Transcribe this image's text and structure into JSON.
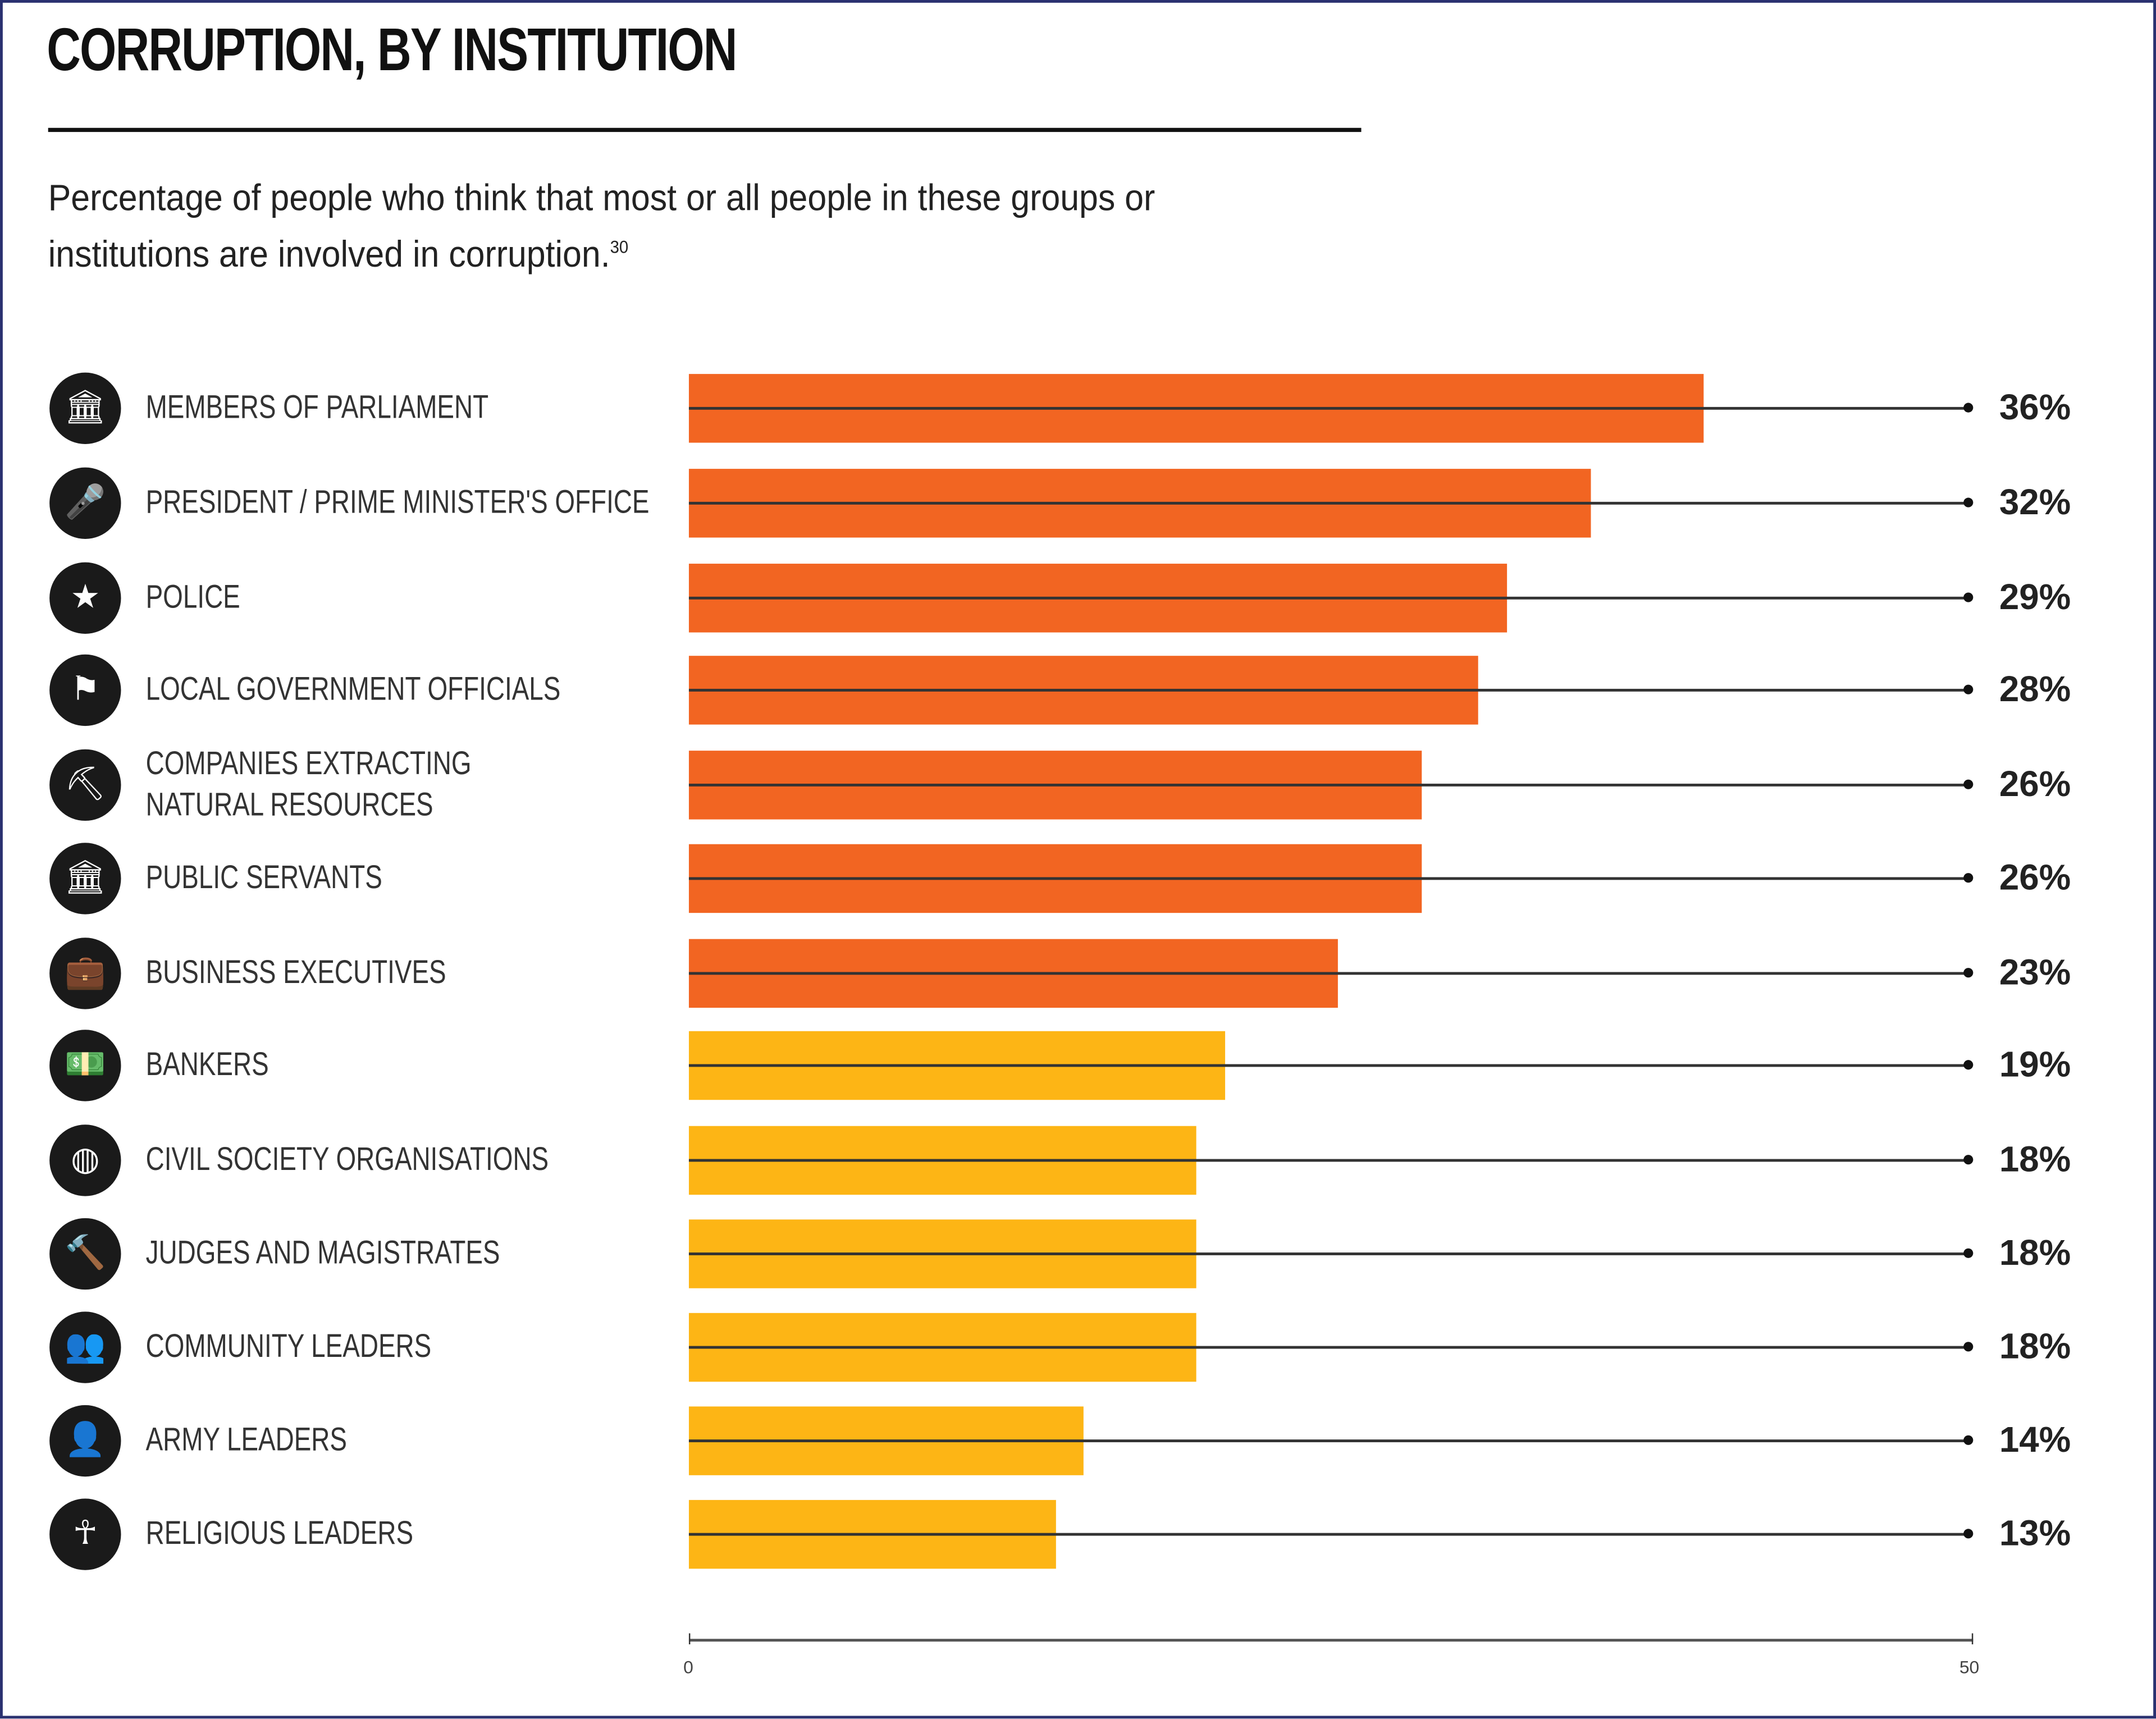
{
  "colors": {
    "high": "#F26522",
    "low": "#FDB515",
    "border": "#2a3170"
  },
  "chart_data": {
    "type": "bar",
    "orientation": "horizontal",
    "title": "CORRUPTION, BY INSTITUTION",
    "subtitle": "Percentage of people who think that most or all people in these groups or institutions are involved in corruption.",
    "footnote": "30",
    "xlim": [
      0,
      50
    ],
    "ticks": [
      "0",
      "50"
    ],
    "categories": [
      "MEMBERS OF PARLIAMENT",
      "PRESIDENT / PRIME MINISTER'S OFFICE",
      "POLICE",
      "LOCAL GOVERNMENT OFFICIALS",
      "COMPANIES EXTRACTING NATURAL RESOURCES",
      "PUBLIC SERVANTS",
      "BUSINESS EXECUTIVES",
      "BANKERS",
      "CIVIL SOCIETY ORGANISATIONS",
      "JUDGES AND MAGISTRATES",
      "COMMUNITY LEADERS",
      "ARMY LEADERS",
      "RELIGIOUS LEADERS"
    ],
    "values": [
      36,
      32,
      29,
      28,
      26,
      26,
      23,
      19,
      18,
      18,
      18,
      14,
      13
    ],
    "value_labels": [
      "36%",
      "32%",
      "29%",
      "28%",
      "26%",
      "26%",
      "23%",
      "19%",
      "18%",
      "18%",
      "18%",
      "14%",
      "13%"
    ],
    "bar_colors": [
      "high",
      "high",
      "high",
      "high",
      "high",
      "high",
      "high",
      "low",
      "low",
      "low",
      "low",
      "low",
      "low"
    ],
    "icons": [
      "parliament-icon",
      "microphone-icon",
      "police-badge-icon",
      "flag-icon",
      "pickaxe-icon",
      "bank-icon",
      "briefcase-icon",
      "money-icon",
      "globe-icon",
      "gavel-icon",
      "community-icon",
      "soldier-icon",
      "ankh-icon"
    ],
    "grid": false
  }
}
